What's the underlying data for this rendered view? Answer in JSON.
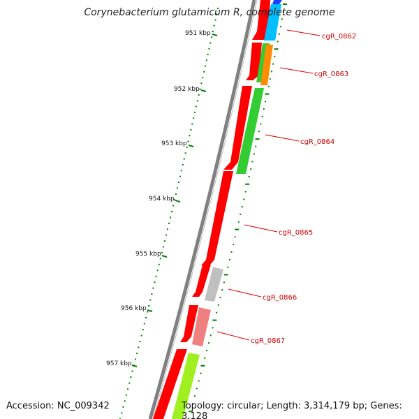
{
  "title": "Corynebacterium glutamicum R, complete genome",
  "footer": {
    "accession": "Accession: NC_009342",
    "topology": "Topology: circular; Length: 3,314,179 bp; Genes: 3,128"
  },
  "scale_labels": [
    "951 kbp",
    "952 kbp",
    "953 kbp",
    "954 kbp",
    "955 kbp",
    "956 kbp",
    "957 kbp"
  ],
  "genes": [
    {
      "label": "cgR_0862",
      "color": "#00bfff"
    },
    {
      "label": "cgR_0863",
      "color": "#ff8c00"
    },
    {
      "label": "cgR_0864",
      "color": "#33cc33"
    },
    {
      "label": "cgR_0865",
      "color": "#ff0000"
    },
    {
      "label": "cgR_0866",
      "color": "#c0c0c0"
    },
    {
      "label": "cgR_0867",
      "color": "#f08080"
    }
  ],
  "colors": {
    "cds": "#ff0000",
    "backbone": "#808080",
    "ticks": "#008000",
    "label_text": "#cc0000",
    "top_blue": "#1e3cff",
    "lime": "#a0f020"
  }
}
